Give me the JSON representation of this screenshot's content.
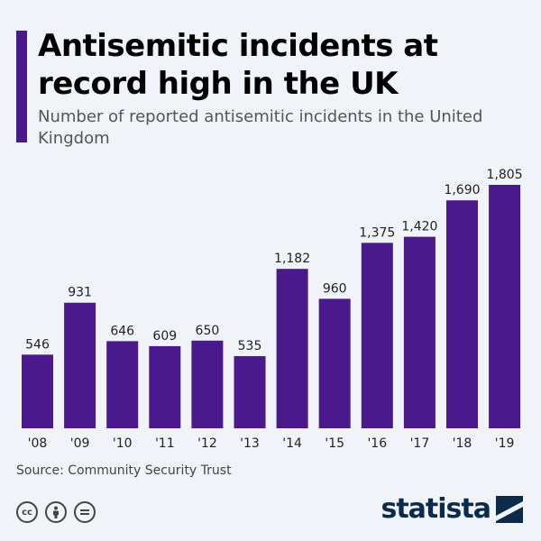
{
  "header": {
    "title": "Antisemitic incidents at record high in the UK",
    "subtitle": "Number of reported antisemitic incidents in the United Kingdom"
  },
  "chart_data": {
    "type": "bar",
    "categories": [
      "'08",
      "'09",
      "'10",
      "'11",
      "'12",
      "'13",
      "'14",
      "'15",
      "'16",
      "'17",
      "'18",
      "'19"
    ],
    "values": [
      546,
      931,
      646,
      609,
      650,
      535,
      1182,
      960,
      1375,
      1420,
      1690,
      1805
    ],
    "value_labels": [
      "546",
      "931",
      "646",
      "609",
      "650",
      "535",
      "1,182",
      "960",
      "1,375",
      "1,420",
      "1,690",
      "1,805"
    ],
    "ylim": [
      0,
      1805
    ],
    "grid": false,
    "colors": {
      "bar": "#4a1a8c"
    }
  },
  "footer": {
    "source": "Source: Community Security Trust",
    "license_icons": [
      "creative-commons-icon",
      "attribution-icon",
      "no-derivatives-icon"
    ],
    "brand": "statista"
  }
}
